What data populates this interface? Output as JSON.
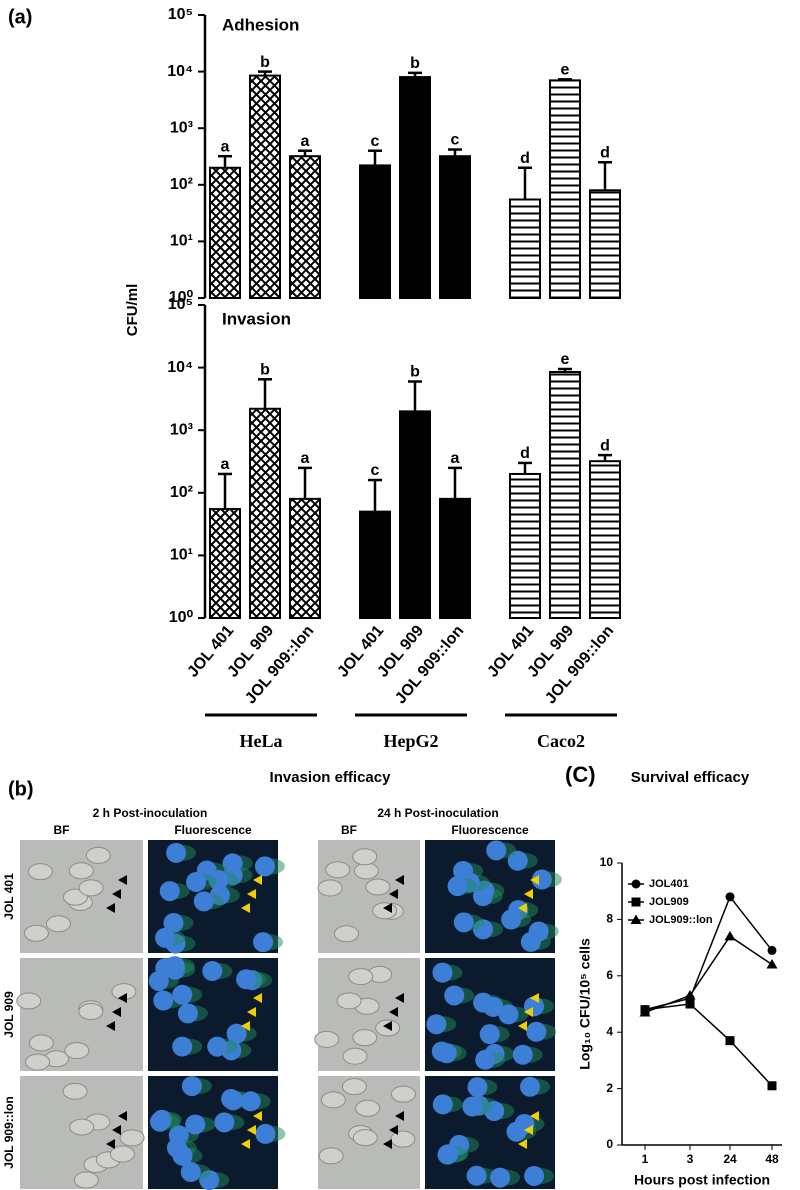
{
  "chart_data": [
    {
      "type": "bar",
      "panel": "(a)",
      "title": "Adhesion",
      "ylabel": "CFU/ml",
      "log_scale": true,
      "ylim": [
        1,
        100000
      ],
      "yticks": [
        {
          "value": 1,
          "label": "10⁰"
        },
        {
          "value": 10,
          "label": "10¹"
        },
        {
          "value": 100,
          "label": "10²"
        },
        {
          "value": 1000,
          "label": "10³"
        },
        {
          "value": 10000,
          "label": "10⁴"
        },
        {
          "value": 100000,
          "label": "10⁵"
        }
      ],
      "values": [
        200,
        8500,
        320,
        220,
        8000,
        320,
        55,
        7000,
        80
      ],
      "errors": [
        120,
        1500,
        80,
        180,
        1500,
        100,
        145,
        300,
        170
      ],
      "annotations": [
        "a",
        "b",
        "a",
        "c",
        "b",
        "c",
        "d",
        "e",
        "d"
      ]
    },
    {
      "type": "bar",
      "title": "Invasion",
      "log_scale": true,
      "ylim": [
        1,
        100000
      ],
      "yticks": [
        {
          "value": 1,
          "label": "10⁰"
        },
        {
          "value": 10,
          "label": "10¹"
        },
        {
          "value": 100,
          "label": "10²"
        },
        {
          "value": 1000,
          "label": "10³"
        },
        {
          "value": 10000,
          "label": "10⁴"
        },
        {
          "value": 100000,
          "label": "10⁵"
        }
      ],
      "categories": [
        "JOL 401",
        "JOL 909",
        "JOL 909::lon",
        "JOL 401",
        "JOL 909",
        "JOL 909::lon",
        "JOL 401",
        "JOL 909",
        "JOL 909::lon"
      ],
      "groups": [
        "HeLa",
        "HepG2",
        "Caco2"
      ],
      "values": [
        55,
        2200,
        80,
        50,
        2000,
        80,
        200,
        8500,
        320
      ],
      "errors": [
        145,
        4300,
        170,
        110,
        4000,
        170,
        100,
        1000,
        80
      ],
      "annotations": [
        "a",
        "b",
        "a",
        "c",
        "b",
        "a",
        "d",
        "e",
        "d"
      ]
    },
    {
      "type": "line",
      "panel": "(C)",
      "title": "Survival efficacy",
      "xlabel": "Hours post infection",
      "ylabel": "Log₁₀ CFU/10⁵ cells",
      "categories": [
        "1",
        "3",
        "24",
        "48"
      ],
      "ylim": [
        0,
        10
      ],
      "yticks": [
        0,
        2,
        4,
        6,
        8,
        10
      ],
      "series": [
        {
          "name": "JOL401",
          "marker": "circle",
          "color": "#000000",
          "values": [
            4.8,
            5.2,
            8.8,
            6.9
          ]
        },
        {
          "name": "JOL909",
          "marker": "square",
          "color": "#000000",
          "values": [
            4.8,
            5.0,
            3.7,
            2.1
          ]
        },
        {
          "name": "JOL909::lon",
          "marker": "triangle",
          "color": "#000000",
          "values": [
            4.7,
            5.3,
            7.4,
            6.4
          ]
        }
      ]
    }
  ],
  "images_panel": {
    "label": "(b)",
    "title": "Invasion efficacy",
    "timepoints": [
      "2 h Post-inoculation",
      "24 h Post-inoculation"
    ],
    "columns": [
      "BF",
      "Fluorescence",
      "BF",
      "Fluorescence"
    ],
    "rows": [
      "JOL 401",
      "JOL 909",
      "JOL 909::lon"
    ]
  }
}
